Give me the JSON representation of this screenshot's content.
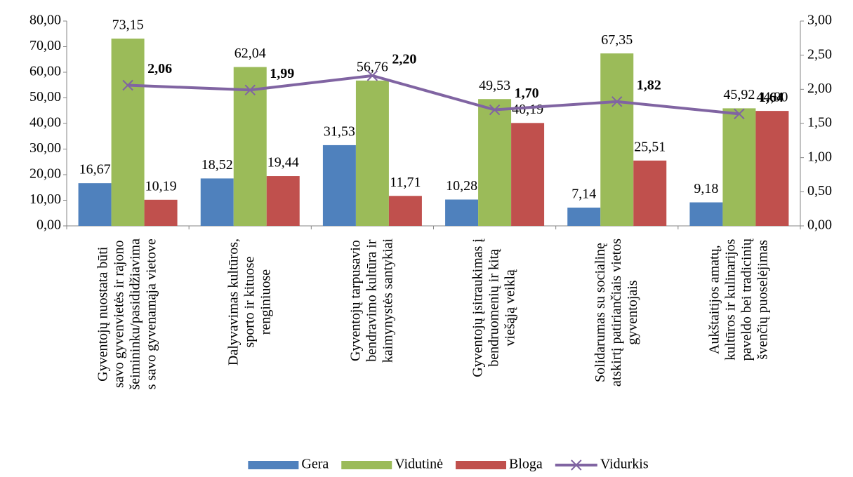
{
  "chart_data": {
    "type": "bar",
    "categories": [
      "Gyventojų nuostata būti\nsavo gyvenvietės ir rajono\nšeimininku/pasididžiavima\ns savo gyvenamąja vietove",
      "Dalyvavimas kultūros,\nsporto ir kituose\nrenginiuose",
      "Gyventojų tarpusavio\nbendravimo kultūra ir\nkaimynystės santykiai",
      "Gyventojų įsitraukimas į\nbendruomenių ir kitą\nviešąją veiklą",
      "Solidarumas su socialinę\natskirtį patiriančiais vietos\ngyventojais",
      "Aukštaitijos amatų,\nkultūros ir kulinarijos\npaveldo bei tradicinių\nšvenčių puoselėjimas"
    ],
    "series": [
      {
        "name": "Gera",
        "type": "bar",
        "color": "#4f81bd",
        "values": [
          16.67,
          18.52,
          31.53,
          10.28,
          7.14,
          9.18
        ],
        "value_labels": [
          "16,67",
          "18,52",
          "31,53",
          "10,28",
          "7,14",
          "9,18"
        ]
      },
      {
        "name": "Vidutinė",
        "type": "bar",
        "color": "#9bbb59",
        "values": [
          73.15,
          62.04,
          56.76,
          49.53,
          67.35,
          45.92
        ],
        "value_labels": [
          "73,15",
          "62,04",
          "56,76",
          "49,53",
          "67,35",
          "45,92"
        ]
      },
      {
        "name": "Bloga",
        "type": "bar",
        "color": "#c0504d",
        "values": [
          10.19,
          19.44,
          11.71,
          40.19,
          25.51,
          44.9
        ],
        "value_labels": [
          "10,19",
          "19,44",
          "11,71",
          "40,19",
          "25,51",
          "44,90"
        ]
      },
      {
        "name": "Vidurkis",
        "type": "line",
        "axis": "y2",
        "color": "#8064a2",
        "values": [
          2.06,
          1.99,
          2.2,
          1.7,
          1.82,
          1.64
        ],
        "value_labels": [
          "2,06",
          "1,99",
          "2,20",
          "1,70",
          "1,82",
          "1,64"
        ]
      }
    ],
    "ylim": [
      0,
      80
    ],
    "yticks": [
      {
        "value": 0,
        "label": "0,00"
      },
      {
        "value": 10,
        "label": "10,00"
      },
      {
        "value": 20,
        "label": "20,00"
      },
      {
        "value": 30,
        "label": "30,00"
      },
      {
        "value": 40,
        "label": "40,00"
      },
      {
        "value": 50,
        "label": "50,00"
      },
      {
        "value": 60,
        "label": "60,00"
      },
      {
        "value": 70,
        "label": "70,00"
      },
      {
        "value": 80,
        "label": "80,00"
      }
    ],
    "y2lim": [
      0,
      3
    ],
    "y2ticks": [
      {
        "value": 0,
        "label": "0,00"
      },
      {
        "value": 0.5,
        "label": "0,50"
      },
      {
        "value": 1,
        "label": "1,00"
      },
      {
        "value": 1.5,
        "label": "1,50"
      },
      {
        "value": 2,
        "label": "2,00"
      },
      {
        "value": 2.5,
        "label": "2,50"
      },
      {
        "value": 3,
        "label": "3,00"
      }
    ],
    "grid": false,
    "legend": "bottom"
  }
}
